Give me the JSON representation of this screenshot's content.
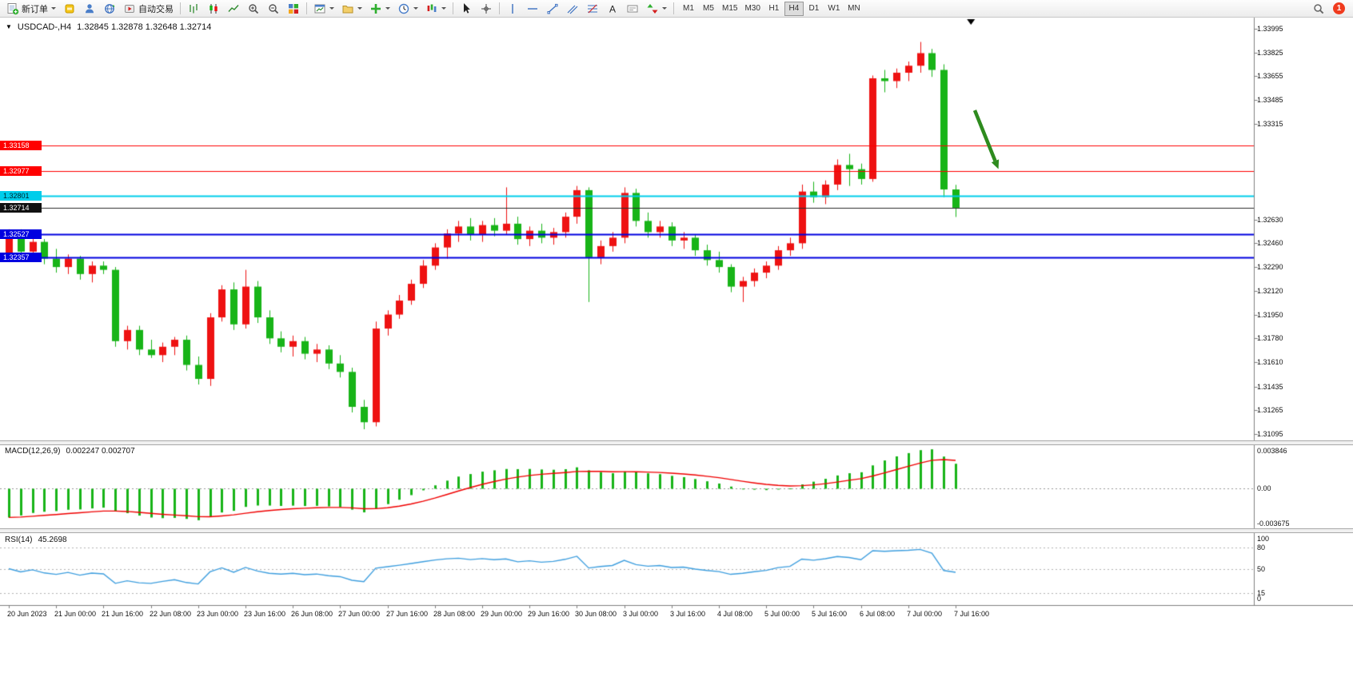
{
  "toolbar": {
    "new_order_label": "新订单",
    "autotrade_label": "自动交易",
    "timeframes": [
      {
        "label": "M1",
        "active": false
      },
      {
        "label": "M5",
        "active": false
      },
      {
        "label": "M15",
        "active": false
      },
      {
        "label": "M30",
        "active": false
      },
      {
        "label": "H1",
        "active": false
      },
      {
        "label": "H4",
        "active": true
      },
      {
        "label": "D1",
        "active": false
      },
      {
        "label": "W1",
        "active": false
      },
      {
        "label": "MN",
        "active": false
      }
    ],
    "notification_count": "1"
  },
  "chart_data": {
    "type": "candlestick",
    "symbol": "USDCAD-",
    "timeframe": "H4",
    "title": "USDCAD-,H4",
    "ohlc_display": {
      "open": "1.32845",
      "high": "1.32878",
      "low": "1.32648",
      "close": "1.32714"
    },
    "grid": false,
    "up_color": "#ee1212",
    "down_color": "#18b418",
    "price_range": {
      "min": 1.3105,
      "max": 1.3404
    },
    "label_every": 4,
    "time_labels": [
      "20 Jun 2023",
      "21 Jun 00:00",
      "21 Jun 16:00",
      "22 Jun 08:00",
      "23 Jun 00:00",
      "23 Jun 16:00",
      "26 Jun 08:00",
      "27 Jun 00:00",
      "27 Jun 16:00",
      "28 Jun 08:00",
      "29 Jun 00:00",
      "29 Jun 16:00",
      "30 Jun 08:00",
      "3 Jul 00:00",
      "3 Jul 16:00",
      "4 Jul 08:00",
      "5 Jul 00:00",
      "5 Jul 16:00",
      "6 Jul 08:00",
      "7 Jul 00:00",
      "7 Jul 16:00"
    ],
    "price_axis_labels": [
      "1.33995",
      "1.33825",
      "1.33655",
      "1.33485",
      "1.33315",
      "1.32630",
      "1.32460",
      "1.32290",
      "1.32120",
      "1.31950",
      "1.31780",
      "1.31610",
      "1.31435",
      "1.31265",
      "1.31095"
    ],
    "price_tags": [
      {
        "text": "1.33158",
        "bg": "#ff0000",
        "fg": "#ffffff"
      },
      {
        "text": "1.32977",
        "bg": "#ff0000",
        "fg": "#ffffff"
      },
      {
        "text": "1.32801",
        "bg": "#00cdeb",
        "fg": "#00222a"
      },
      {
        "text": "1.32714",
        "bg": "#111111",
        "fg": "#ffffff"
      },
      {
        "text": "1.32527",
        "bg": "#0000e0",
        "fg": "#ffffff"
      },
      {
        "text": "1.32357",
        "bg": "#0000e0",
        "fg": "#ffffff"
      }
    ],
    "hlines": [
      {
        "price": 1.33158,
        "color": "#ff0000",
        "width": 1
      },
      {
        "price": 1.32977,
        "color": "#ff0000",
        "width": 1
      },
      {
        "price": 1.32801,
        "color": "#00cdeb",
        "width": 2,
        "handle": true
      },
      {
        "price": 1.32714,
        "color": "#2a2a2a",
        "width": 1,
        "bid": true
      },
      {
        "price": 1.32527,
        "color": "#0000e0",
        "width": 2,
        "handle": true
      },
      {
        "price": 1.32357,
        "color": "#0000e0",
        "width": 2,
        "handle": true
      }
    ],
    "arrow": {
      "from_bar": 81.6,
      "from_price": 1.3341,
      "to_bar": 83.6,
      "to_price": 1.3299,
      "color": "#2e8b1e"
    },
    "candles": [
      [
        1.3238,
        1.3256,
        1.3233,
        1.3252
      ],
      [
        1.3252,
        1.3256,
        1.3236,
        1.324
      ],
      [
        1.324,
        1.325,
        1.3234,
        1.3247
      ],
      [
        1.3247,
        1.3249,
        1.3231,
        1.3235
      ],
      [
        1.3235,
        1.3242,
        1.3225,
        1.3229
      ],
      [
        1.3229,
        1.3238,
        1.3224,
        1.3235
      ],
      [
        1.3235,
        1.3237,
        1.322,
        1.3224
      ],
      [
        1.3224,
        1.3233,
        1.3218,
        1.323
      ],
      [
        1.323,
        1.3233,
        1.3224,
        1.3227
      ],
      [
        1.3227,
        1.3229,
        1.3172,
        1.3176
      ],
      [
        1.3176,
        1.3187,
        1.317,
        1.3184
      ],
      [
        1.3184,
        1.3187,
        1.3166,
        1.317
      ],
      [
        1.317,
        1.3177,
        1.3164,
        1.3166
      ],
      [
        1.3166,
        1.3175,
        1.3161,
        1.3172
      ],
      [
        1.3172,
        1.3179,
        1.3166,
        1.3177
      ],
      [
        1.3177,
        1.318,
        1.3155,
        1.3159
      ],
      [
        1.3159,
        1.3165,
        1.3145,
        1.3149
      ],
      [
        1.3149,
        1.3196,
        1.3144,
        1.3193
      ],
      [
        1.3193,
        1.3216,
        1.319,
        1.3213
      ],
      [
        1.3213,
        1.3218,
        1.3184,
        1.3188
      ],
      [
        1.3188,
        1.3227,
        1.3185,
        1.3215
      ],
      [
        1.3215,
        1.3219,
        1.3189,
        1.3193
      ],
      [
        1.3193,
        1.3198,
        1.3174,
        1.3178
      ],
      [
        1.3178,
        1.3183,
        1.3168,
        1.3172
      ],
      [
        1.3172,
        1.318,
        1.3165,
        1.3176
      ],
      [
        1.3176,
        1.3179,
        1.3163,
        1.3167
      ],
      [
        1.3167,
        1.3174,
        1.3161,
        1.317
      ],
      [
        1.317,
        1.3173,
        1.3156,
        1.316
      ],
      [
        1.316,
        1.3166,
        1.315,
        1.3154
      ],
      [
        1.3154,
        1.3157,
        1.3125,
        1.3129
      ],
      [
        1.3129,
        1.3134,
        1.3113,
        1.3118
      ],
      [
        1.3118,
        1.319,
        1.3115,
        1.3185
      ],
      [
        1.3185,
        1.3198,
        1.318,
        1.3195
      ],
      [
        1.3195,
        1.3209,
        1.3192,
        1.3205
      ],
      [
        1.3205,
        1.322,
        1.3202,
        1.3217
      ],
      [
        1.3217,
        1.3234,
        1.3214,
        1.323
      ],
      [
        1.323,
        1.3246,
        1.3227,
        1.3243
      ],
      [
        1.3243,
        1.3256,
        1.3235,
        1.3253
      ],
      [
        1.3253,
        1.3262,
        1.3247,
        1.3258
      ],
      [
        1.3258,
        1.3264,
        1.3248,
        1.3252
      ],
      [
        1.3252,
        1.3262,
        1.3247,
        1.3259
      ],
      [
        1.3259,
        1.3264,
        1.3251,
        1.3255
      ],
      [
        1.3255,
        1.3286,
        1.3252,
        1.326
      ],
      [
        1.326,
        1.3265,
        1.3245,
        1.3249
      ],
      [
        1.3249,
        1.3258,
        1.3244,
        1.3255
      ],
      [
        1.3255,
        1.326,
        1.3246,
        1.325
      ],
      [
        1.325,
        1.3257,
        1.3245,
        1.3254
      ],
      [
        1.3254,
        1.3268,
        1.325,
        1.3265
      ],
      [
        1.3265,
        1.3287,
        1.326,
        1.3284
      ],
      [
        1.3284,
        1.3286,
        1.3204,
        1.3236
      ],
      [
        1.3236,
        1.3248,
        1.3231,
        1.3244
      ],
      [
        1.3244,
        1.3254,
        1.324,
        1.325
      ],
      [
        1.325,
        1.3286,
        1.3246,
        1.3282
      ],
      [
        1.3282,
        1.3285,
        1.3258,
        1.3262
      ],
      [
        1.3262,
        1.3268,
        1.325,
        1.3254
      ],
      [
        1.3254,
        1.3262,
        1.325,
        1.3258
      ],
      [
        1.3258,
        1.3261,
        1.3244,
        1.3248
      ],
      [
        1.3248,
        1.3254,
        1.3242,
        1.325
      ],
      [
        1.325,
        1.3252,
        1.3237,
        1.3241
      ],
      [
        1.3241,
        1.3245,
        1.323,
        1.3234
      ],
      [
        1.3234,
        1.324,
        1.3225,
        1.3229
      ],
      [
        1.3229,
        1.3231,
        1.3211,
        1.3215
      ],
      [
        1.3215,
        1.3222,
        1.3204,
        1.3219
      ],
      [
        1.3219,
        1.3228,
        1.3215,
        1.3225
      ],
      [
        1.3225,
        1.3233,
        1.3221,
        1.323
      ],
      [
        1.323,
        1.3244,
        1.3227,
        1.3241
      ],
      [
        1.3241,
        1.325,
        1.3237,
        1.3246
      ],
      [
        1.3246,
        1.3288,
        1.3242,
        1.3283
      ],
      [
        1.3283,
        1.329,
        1.3275,
        1.3279
      ],
      [
        1.3279,
        1.3291,
        1.3274,
        1.3288
      ],
      [
        1.3288,
        1.3306,
        1.3284,
        1.3302
      ],
      [
        1.3302,
        1.331,
        1.3287,
        1.3299
      ],
      [
        1.3299,
        1.3303,
        1.3288,
        1.3292
      ],
      [
        1.3292,
        1.3366,
        1.329,
        1.3364
      ],
      [
        1.3364,
        1.337,
        1.3354,
        1.3362
      ],
      [
        1.3362,
        1.3371,
        1.3357,
        1.3368
      ],
      [
        1.3368,
        1.3376,
        1.3362,
        1.3373
      ],
      [
        1.3373,
        1.339,
        1.3368,
        1.3382
      ],
      [
        1.3382,
        1.3385,
        1.3365,
        1.337
      ],
      [
        1.337,
        1.3374,
        1.3279,
        1.32845
      ],
      [
        1.32845,
        1.32878,
        1.32648,
        1.32714
      ]
    ],
    "indicators": {
      "macd": {
        "label": "MACD(12,26,9)",
        "values_text": "0.002247 0.002707",
        "params": [
          12,
          26,
          9
        ],
        "axis_labels": [
          "0.003846",
          "0.00",
          "-0.003675"
        ],
        "range": {
          "min": -0.003675,
          "max": 0.003846
        },
        "histogram_color": "#18b418",
        "signal_color": "#f00000"
      },
      "rsi": {
        "label": "RSI(14)",
        "value_text": "45.2698",
        "period": 14,
        "axis_labels": [
          "100",
          "80",
          "50",
          "15",
          "0"
        ],
        "levels": [
          80,
          50,
          15
        ],
        "range": {
          "min": 0,
          "max": 100
        },
        "line_color": "#3f9fdf"
      }
    }
  }
}
